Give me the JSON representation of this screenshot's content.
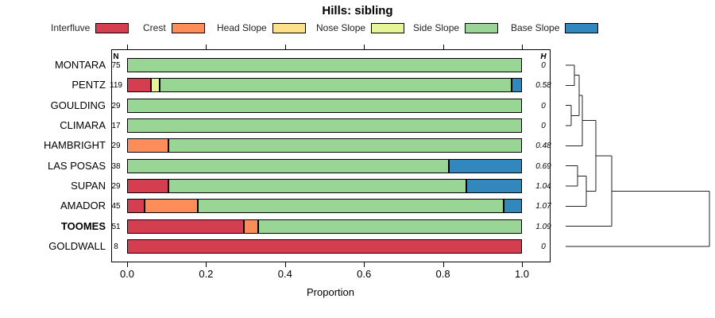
{
  "title": "Hills: sibling",
  "n_header": "N",
  "h_header": "H",
  "xaxis": {
    "label": "Proportion",
    "ticks": [
      "0.0",
      "0.2",
      "0.4",
      "0.6",
      "0.8",
      "1.0"
    ]
  },
  "legend": [
    {
      "label": "Interfluve",
      "color": "#D53E4F"
    },
    {
      "label": "Crest",
      "color": "#FC8D59"
    },
    {
      "label": "Head Slope",
      "color": "#FEE08B"
    },
    {
      "label": "Nose Slope",
      "color": "#E6F598"
    },
    {
      "label": "Side Slope",
      "color": "#99D594"
    },
    {
      "label": "Base Slope",
      "color": "#3288BD"
    }
  ],
  "chart_data": {
    "type": "bar",
    "stacked": true,
    "orientation": "horizontal",
    "title": "Hills: sibling",
    "xlabel": "Proportion",
    "xlim": [
      0,
      1
    ],
    "segment_classes": [
      "Interfluve",
      "Crest",
      "Head Slope",
      "Nose Slope",
      "Side Slope",
      "Base Slope"
    ],
    "rows": [
      {
        "name": "MONTARA",
        "n": 75,
        "h": "0",
        "bold": false,
        "segments": [
          {
            "class": "Side Slope",
            "value": 1.0
          }
        ]
      },
      {
        "name": "PENTZ",
        "n": 119,
        "h": "0.58",
        "bold": false,
        "segments": [
          {
            "class": "Interfluve",
            "value": 0.06
          },
          {
            "class": "Nose Slope",
            "value": 0.022
          },
          {
            "class": "Side Slope",
            "value": 0.891
          },
          {
            "class": "Base Slope",
            "value": 0.027
          }
        ]
      },
      {
        "name": "GOULDING",
        "n": 29,
        "h": "0",
        "bold": false,
        "segments": [
          {
            "class": "Side Slope",
            "value": 1.0
          }
        ]
      },
      {
        "name": "CLIMARA",
        "n": 17,
        "h": "0",
        "bold": false,
        "segments": [
          {
            "class": "Side Slope",
            "value": 1.0
          }
        ]
      },
      {
        "name": "HAMBRIGHT",
        "n": 29,
        "h": "0.48",
        "bold": false,
        "segments": [
          {
            "class": "Crest",
            "value": 0.104
          },
          {
            "class": "Side Slope",
            "value": 0.896
          }
        ]
      },
      {
        "name": "LAS POSAS",
        "n": 38,
        "h": "0.69",
        "bold": false,
        "segments": [
          {
            "class": "Side Slope",
            "value": 0.815
          },
          {
            "class": "Base Slope",
            "value": 0.185
          }
        ]
      },
      {
        "name": "SUPAN",
        "n": 29,
        "h": "1.04",
        "bold": false,
        "segments": [
          {
            "class": "Interfluve",
            "value": 0.105
          },
          {
            "class": "Side Slope",
            "value": 0.754
          },
          {
            "class": "Base Slope",
            "value": 0.141
          }
        ]
      },
      {
        "name": "AMADOR",
        "n": 45,
        "h": "1.07",
        "bold": false,
        "segments": [
          {
            "class": "Interfluve",
            "value": 0.044
          },
          {
            "class": "Crest",
            "value": 0.135
          },
          {
            "class": "Side Slope",
            "value": 0.775
          },
          {
            "class": "Base Slope",
            "value": 0.046
          }
        ]
      },
      {
        "name": "TOOMES",
        "n": 51,
        "h": "1.09",
        "bold": true,
        "segments": [
          {
            "class": "Interfluve",
            "value": 0.296
          },
          {
            "class": "Crest",
            "value": 0.036
          },
          {
            "class": "Side Slope",
            "value": 0.668
          }
        ]
      },
      {
        "name": "GOLDWALL",
        "n": 8,
        "h": "0",
        "bold": false,
        "segments": [
          {
            "class": "Interfluve",
            "value": 1.0
          }
        ]
      }
    ],
    "dendrogram": {
      "height": 1.0,
      "children": [
        {
          "height": 0.32,
          "children": [
            {
              "height": 0.21,
              "children": [
                {
                  "height": 0.116,
                  "children": [
                    {
                      "height": 0.094,
                      "children": [
                        {
                          "height": 0.061,
                          "children": [
                            "MONTARA",
                            "PENTZ"
                          ]
                        },
                        {
                          "height": 0.039,
                          "children": [
                            "GOULDING",
                            "CLIMARA"
                          ]
                        }
                      ]
                    },
                    "HAMBRIGHT"
                  ]
                },
                {
                  "height": 0.144,
                  "children": [
                    {
                      "height": 0.083,
                      "children": [
                        "LAS POSAS",
                        "SUPAN"
                      ]
                    },
                    "AMADOR"
                  ]
                }
              ]
            },
            "TOOMES"
          ]
        },
        "GOLDWALL"
      ]
    }
  }
}
